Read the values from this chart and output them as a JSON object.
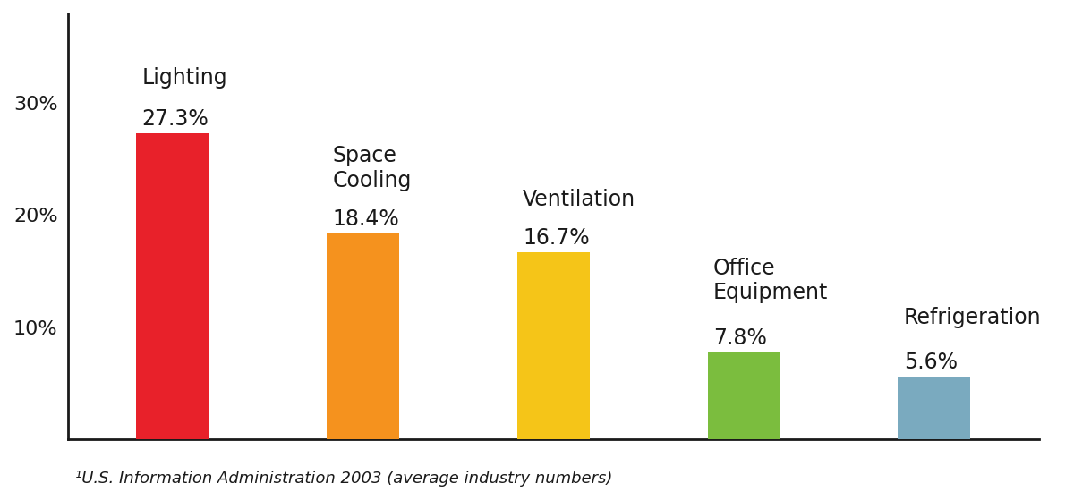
{
  "categories": [
    "Lighting",
    "Space\nCooling",
    "Ventilation",
    "Office\nEquipment",
    "Refrigeration"
  ],
  "values": [
    27.3,
    18.4,
    16.7,
    7.8,
    5.6
  ],
  "labels": [
    "27.3%",
    "18.4%",
    "16.7%",
    "7.8%",
    "5.6%"
  ],
  "bar_colors": [
    "#E8212A",
    "#F5921E",
    "#F5C518",
    "#7BBD3E",
    "#7AAABF"
  ],
  "yticks": [
    0,
    10,
    20,
    30
  ],
  "ytick_labels": [
    "",
    "10%",
    "20%",
    "30%"
  ],
  "ylabel_fontsize": 16,
  "bar_label_fontsize": 17,
  "category_label_fontsize": 17,
  "footnote": "¹U.S. Information Administration 2003 (average industry numbers)",
  "footnote_fontsize": 13,
  "background_color": "#FFFFFF",
  "ylim": [
    0,
    38
  ]
}
